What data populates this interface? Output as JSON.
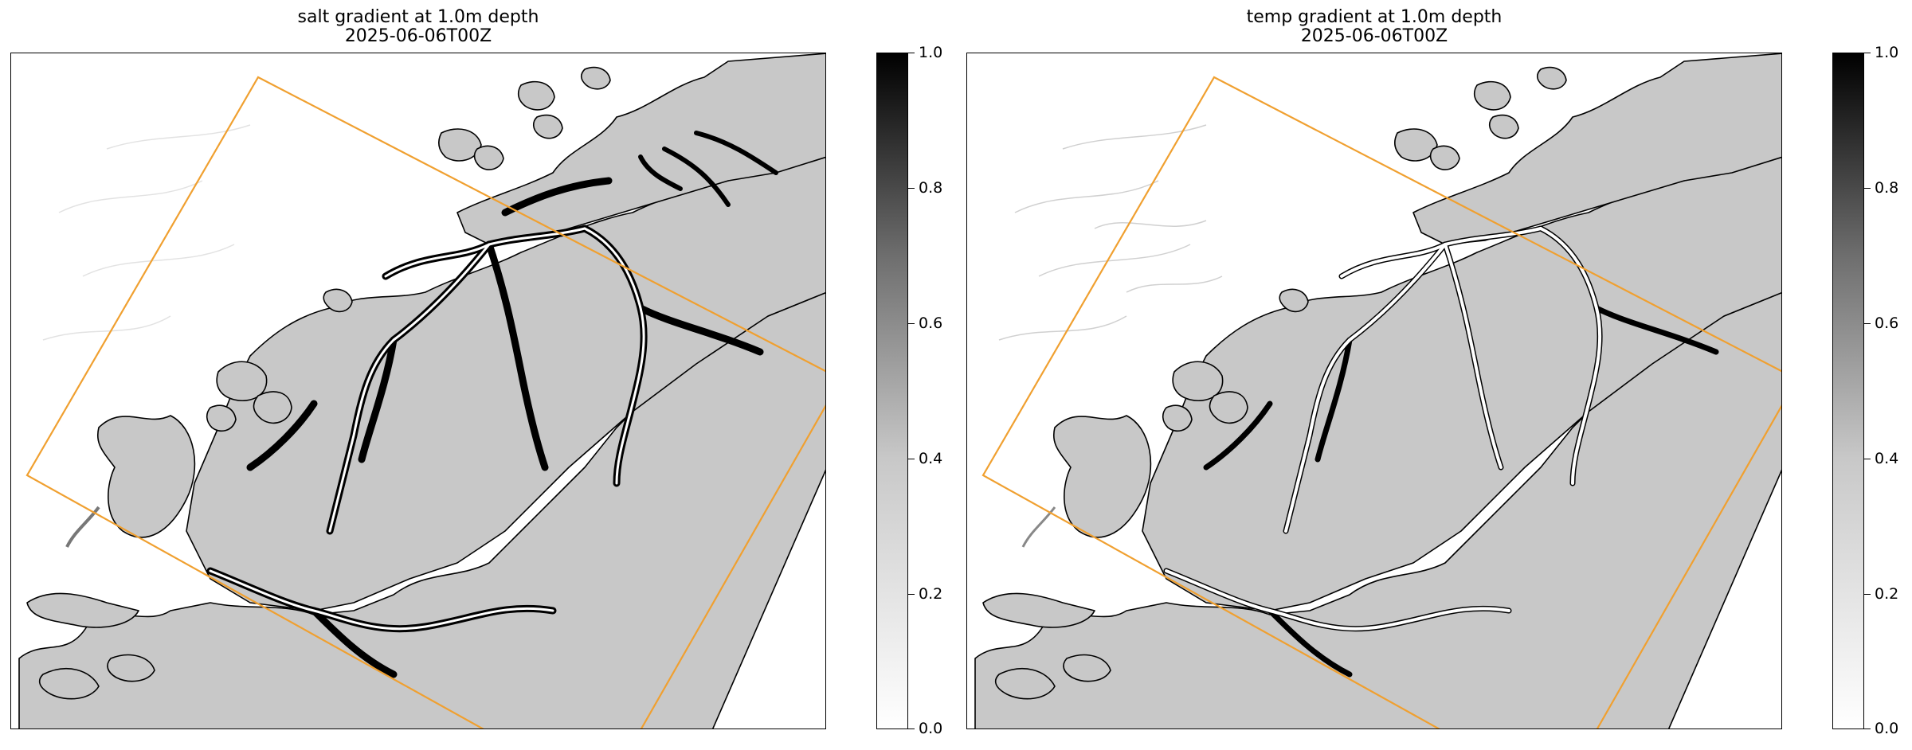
{
  "panels": [
    {
      "id": "salt",
      "title": "salt gradient at 1.0m depth",
      "subtitle": "2025-06-06T00Z",
      "field_intensity": "high"
    },
    {
      "id": "temp",
      "title": "temp gradient at 1.0m depth",
      "subtitle": "2025-06-06T00Z",
      "field_intensity": "low"
    }
  ],
  "colorbar": {
    "ticks": [
      "1.0",
      "0.8",
      "0.6",
      "0.4",
      "0.2",
      "0.0"
    ],
    "range": [
      0.0,
      1.0
    ],
    "colormap": "grayscale, white = 0.0, black = 1.0"
  },
  "colors": {
    "land": "#c8c8c8",
    "water": "#ffffff",
    "domain_outline": "#f0a030",
    "coastline": "#000000"
  }
}
